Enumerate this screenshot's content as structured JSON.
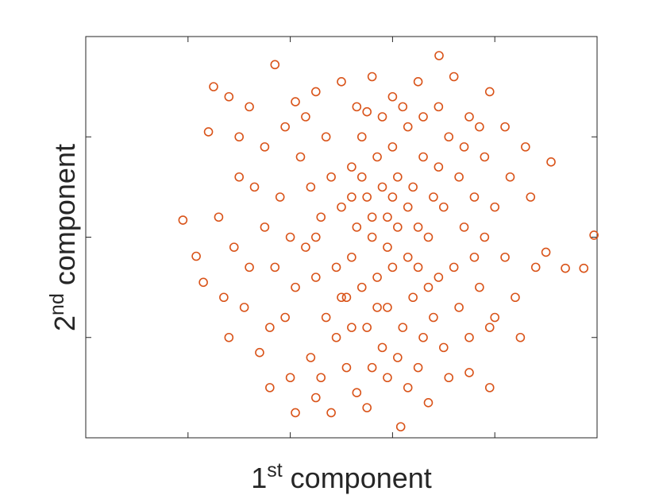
{
  "chart_data": {
    "type": "scatter",
    "xlabel": [
      "1",
      "st",
      " component"
    ],
    "ylabel": [
      "2",
      "nd",
      " component"
    ],
    "xlim": [
      -5,
      5
    ],
    "xticks": [
      -3,
      -1,
      1,
      3
    ],
    "ylim": [
      -2,
      2
    ],
    "yticks": [
      -1,
      0,
      1
    ],
    "grid": false,
    "marker": "open-circle",
    "series": [
      {
        "color": "#d95319",
        "x": [
          4.94,
          -3.1,
          1.91,
          1.16,
          4.38,
          4.74,
          -2.84,
          -1.3,
          -2.5,
          -2.6,
          -2.2,
          -1.8,
          -1.5,
          -2.0,
          -2.4,
          -2.7,
          -2.3,
          -1.9,
          -1.6,
          -1.4,
          -1.0,
          -0.9,
          -0.5,
          -0.2,
          0.3,
          0.5,
          0.9,
          1.3,
          1.7,
          2.1,
          2.5,
          2.9,
          3.0,
          3.4,
          3.8,
          4.0,
          3.7,
          4.1,
          3.6,
          3.2,
          2.9,
          2.5,
          2.2,
          1.5,
          1.0,
          0.6,
          0.0,
          -0.5,
          -0.9,
          -1.1,
          -0.8,
          -0.6,
          -0.4,
          -0.7,
          -0.5,
          -0.3,
          -0.1,
          0.1,
          0.2,
          0.0,
          0.2,
          0.4,
          0.5,
          0.6,
          0.7,
          0.5,
          0.8,
          0.9,
          1.0,
          0.9,
          1.1,
          1.0,
          1.3,
          1.4,
          1.5,
          1.3,
          1.4,
          1.6,
          1.8,
          1.9,
          1.7,
          2.0,
          1.9,
          2.1,
          2.3,
          2.4,
          2.2,
          2.3,
          2.5,
          2.7,
          2.8,
          2.6,
          2.8,
          3.0,
          3.2,
          -1.2,
          -1.3,
          -1.1,
          -1.5,
          -1.7,
          -1.0,
          -0.2,
          0.3,
          0.8,
          1.2,
          0.1,
          0.6,
          1.1,
          -0.6,
          1.5,
          0.4,
          0.3,
          0.8,
          1.2,
          1.6,
          0.7,
          -0.1,
          0.6,
          1.1,
          0.2,
          1.7,
          2.0,
          -0.3,
          -0.9,
          2.6,
          3.3,
          -2.1,
          -1.8,
          -2.0,
          -0.4,
          1.9,
          0.9,
          0.4,
          1.0,
          1.3,
          0.7,
          0.2,
          1.5,
          1.8,
          -0.5,
          0.0,
          2.4,
          2.9,
          3.5,
          -1.4,
          -2.2,
          0.5,
          1.6,
          2.7,
          -0.7
        ],
        "y": [
          0.02,
          0.17,
          1.81,
          -1.89,
          -0.31,
          -0.31,
          -0.19,
          1.72,
          1.5,
          1.05,
          1.4,
          1.3,
          0.9,
          0.6,
          0.2,
          -0.45,
          -0.6,
          -0.7,
          -1.15,
          -1.5,
          -1.4,
          -1.75,
          -1.6,
          -1.75,
          -1.55,
          -1.7,
          -1.4,
          -1.5,
          -1.65,
          -1.4,
          -1.35,
          -1.5,
          -0.8,
          -0.6,
          -0.3,
          -0.15,
          0.4,
          0.75,
          0.9,
          1.1,
          1.45,
          1.2,
          1.6,
          1.55,
          1.4,
          1.6,
          1.55,
          1.45,
          1.35,
          1.1,
          0.8,
          0.5,
          0.2,
          -0.1,
          -0.4,
          -0.8,
          -1.0,
          -0.6,
          -0.2,
          0.3,
          0.7,
          1.0,
          0.4,
          0.0,
          -0.4,
          -0.9,
          -1.1,
          -0.7,
          -0.3,
          0.2,
          0.6,
          0.9,
          1.1,
          0.5,
          0.1,
          -0.2,
          -0.6,
          -1.0,
          -0.8,
          -0.4,
          0.0,
          0.3,
          0.7,
          1.0,
          0.6,
          0.1,
          -0.3,
          -0.7,
          -1.0,
          -0.5,
          0.0,
          0.4,
          0.8,
          0.3,
          -0.2,
          0.4,
          -0.3,
          -0.8,
          0.1,
          0.5,
          0.0,
          0.6,
          1.3,
          1.2,
          1.3,
          -1.3,
          -1.3,
          -1.2,
          -1.2,
          -1.3,
          -0.5,
          0.1,
          0.5,
          -0.9,
          0.8,
          0.8,
          -0.3,
          0.2,
          0.1,
          -0.9,
          -0.5,
          -1.1,
          1.0,
          -0.5,
          -0.2,
          0.6,
          -0.1,
          -0.3,
          1.0,
          -1.4,
          1.3,
          -0.1,
          0.6,
          0.4,
          0.3,
          -0.7,
          0.4,
          -0.3,
          0.4,
          0.0,
          -0.6,
          0.9,
          -0.9,
          -1.0,
          -0.9,
          -1.0,
          1.25,
          1.2,
          1.1,
          1.2
        ]
      }
    ]
  }
}
